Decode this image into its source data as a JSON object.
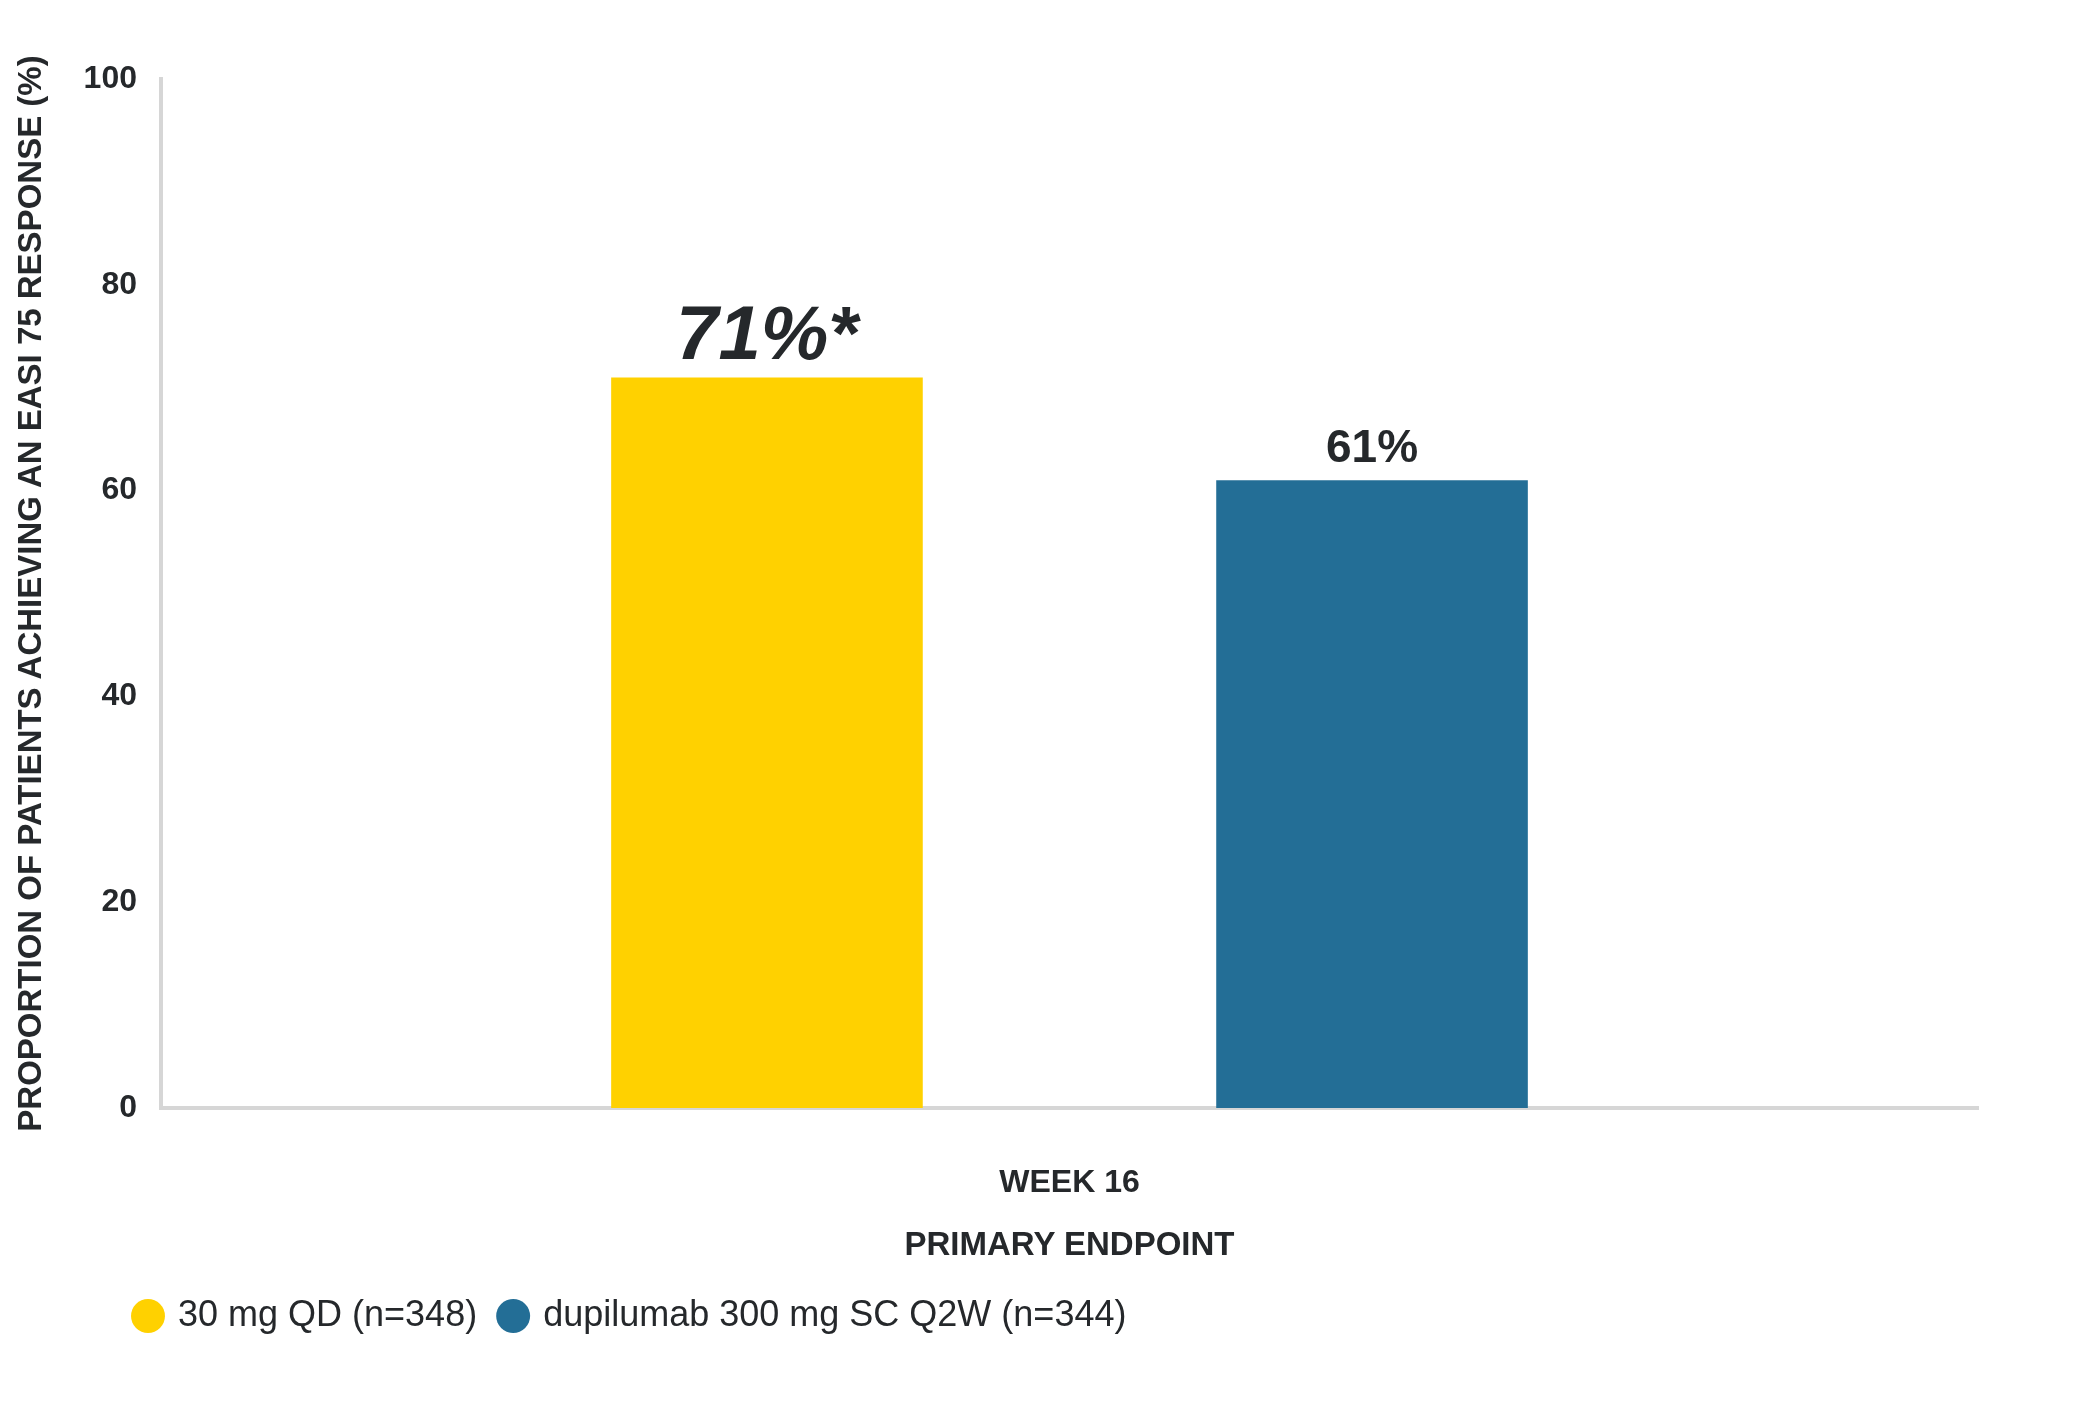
{
  "chart_data": {
    "type": "bar",
    "ylabel": "PROPORTION OF PATIENTS ACHIEVING AN EASI 75 RESPONSE (%)",
    "xlabel": "PRIMARY ENDPOINT",
    "categories": [
      "WEEK 16"
    ],
    "series": [
      {
        "name": "30 mg QD (n=348)",
        "color": "#ffd100",
        "values": [
          71
        ],
        "value_labels": [
          "71%*"
        ]
      },
      {
        "name": "dupilumab 300 mg SC Q2W (n=344)",
        "color": "#236e96",
        "values": [
          61
        ],
        "value_labels": [
          "61%"
        ]
      }
    ],
    "ylim": [
      0,
      100
    ],
    "yticks": [
      0,
      20,
      40,
      60,
      80,
      100
    ],
    "legend": "bottom left"
  }
}
